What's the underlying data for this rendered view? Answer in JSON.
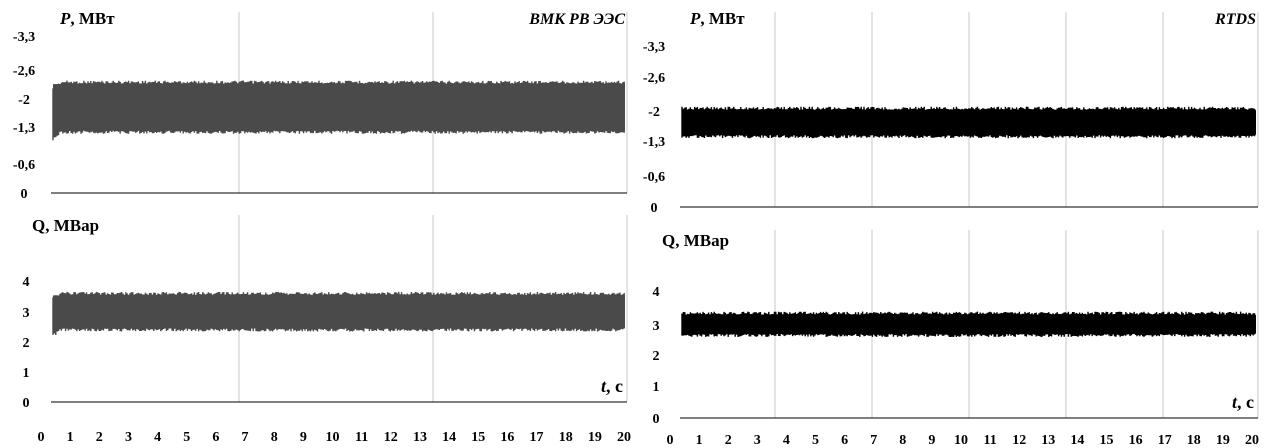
{
  "chart_data": [
    {
      "type": "area",
      "panel": "left-top",
      "title": "ВМК РВ ЭЭС",
      "ylabel_symbol": "P",
      "ylabel_unit": ", МВт",
      "y_ticks": [
        "-3,3",
        "-2,6",
        "-2",
        "-1,3",
        "-0,6",
        "0"
      ],
      "ylim": [
        0,
        -3.3
      ],
      "x_range": [
        0,
        20
      ],
      "grid": "vertical",
      "series": [
        {
          "color": "#4a4a4a",
          "band_min": -1.2,
          "band_max": -2.35,
          "start_min": -1.05,
          "start_max": -2.2
        }
      ]
    },
    {
      "type": "area",
      "panel": "left-bottom",
      "ylabel": "Q, МВар",
      "y_ticks": [
        "4",
        "3",
        "2",
        "1",
        "0"
      ],
      "ylim": [
        0,
        4.5
      ],
      "x_range": [
        0,
        20
      ],
      "grid": "vertical",
      "xlabel_symbol": "t",
      "xlabel_unit": ", с",
      "x_ticks": [
        "0",
        "1",
        "2",
        "3",
        "4",
        "5",
        "6",
        "7",
        "8",
        "9",
        "10",
        "11",
        "12",
        "13",
        "14",
        "15",
        "16",
        "17",
        "18",
        "19",
        "20"
      ],
      "series": [
        {
          "color": "#4a4a4a",
          "band_min": 2.4,
          "band_max": 3.6,
          "start_min": 2.2,
          "start_max": 3.45
        }
      ]
    },
    {
      "type": "area",
      "panel": "right-top",
      "title": "RTDS",
      "ylabel_symbol": "P",
      "ylabel_unit": ", МВт",
      "y_ticks": [
        "-3,3",
        "-2,6",
        "-2",
        "-1,3",
        "-0,6",
        "0"
      ],
      "ylim": [
        0,
        -3.3
      ],
      "x_range": [
        0,
        20
      ],
      "grid": "vertical",
      "series": [
        {
          "color": "#000000",
          "band_min": -1.4,
          "band_max": -2.05,
          "start_min": -1.4,
          "start_max": -2.05
        }
      ]
    },
    {
      "type": "area",
      "panel": "right-bottom",
      "ylabel": "Q, МВар",
      "y_ticks": [
        "4",
        "3",
        "2",
        "1",
        "0"
      ],
      "ylim": [
        0,
        4.5
      ],
      "x_range": [
        0,
        20
      ],
      "grid": "vertical",
      "xlabel_symbol": "t",
      "xlabel_unit": ", с",
      "x_ticks": [
        "0",
        "1",
        "2",
        "3",
        "4",
        "5",
        "6",
        "7",
        "8",
        "9",
        "10",
        "11",
        "12",
        "13",
        "14",
        "15",
        "16",
        "17",
        "18",
        "19",
        "20"
      ],
      "series": [
        {
          "color": "#000000",
          "band_min": 2.65,
          "band_max": 3.35,
          "start_min": 2.65,
          "start_max": 3.35
        }
      ]
    }
  ]
}
